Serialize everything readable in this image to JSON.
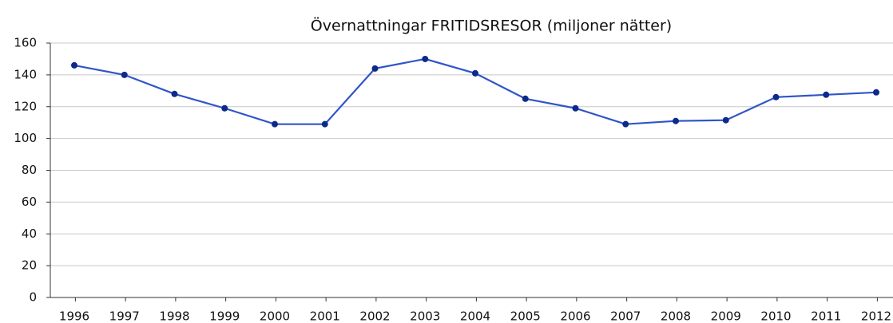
{
  "chart_data": {
    "type": "line",
    "title": "Övernattningar  FRITIDSRESOR (miljoner nätter)",
    "categories": [
      "1996",
      "1997",
      "1998",
      "1999",
      "2000",
      "2001",
      "2002",
      "2003",
      "2004",
      "2005",
      "2006",
      "2007",
      "2008",
      "2009",
      "2010",
      "2011",
      "2012"
    ],
    "series": [
      {
        "name": "Övernattningar",
        "color": "#2f55c8",
        "marker_color": "#0d2a8a",
        "values": [
          146,
          140,
          128,
          119,
          109,
          109,
          144,
          150,
          141,
          125,
          119,
          109,
          111,
          111.5,
          126,
          127.5,
          129
        ]
      }
    ],
    "ylim": [
      0,
      160
    ],
    "yticks": [
      0,
      20,
      40,
      60,
      80,
      100,
      120,
      140,
      160
    ],
    "grid": true
  }
}
